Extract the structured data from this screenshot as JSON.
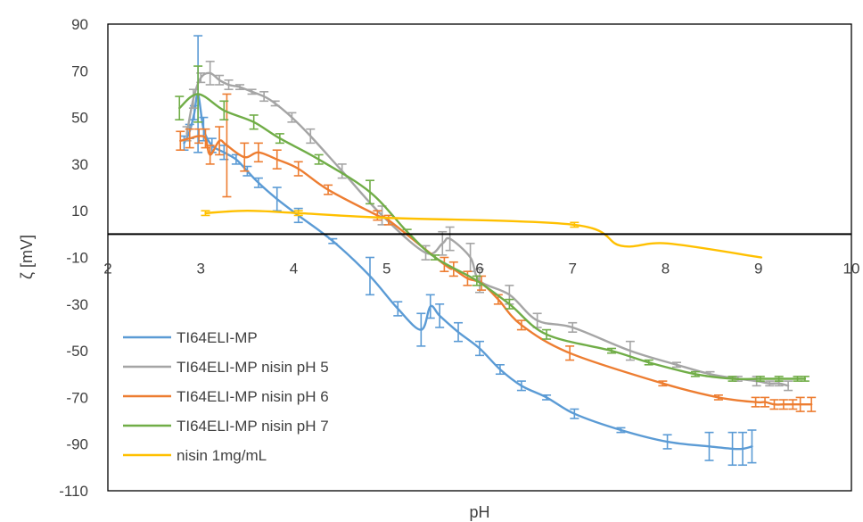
{
  "chart_data": {
    "type": "line",
    "title": "",
    "xlabel": "pH",
    "ylabel": "ζ [mV]",
    "xlim": [
      2,
      10
    ],
    "ylim": [
      -110,
      90
    ],
    "xticks": [
      2,
      3,
      4,
      5,
      6,
      7,
      8,
      9,
      10
    ],
    "yticks": [
      -110,
      -90,
      -70,
      -50,
      -30,
      -10,
      10,
      30,
      50,
      70,
      90
    ],
    "x_tick_labels": [
      "2",
      "3",
      "4",
      "5",
      "6",
      "7",
      "8",
      "9",
      "10"
    ],
    "y_tick_labels": [
      "-110",
      "-90",
      "-70",
      "-50",
      "-30",
      "-10",
      "10",
      "30",
      "50",
      "70",
      "90"
    ],
    "x_axis_crosses_at_y": 0,
    "grid": false,
    "legend_position": "bottom-left",
    "series": [
      {
        "name": "TI64ELI-MP",
        "color": "#5B9BD5",
        "x": [
          2.82,
          2.88,
          2.93,
          2.97,
          3.03,
          3.12,
          3.25,
          3.38,
          3.5,
          3.62,
          3.82,
          4.05,
          4.42,
          4.82,
          5.12,
          5.37,
          5.47,
          5.57,
          5.77,
          6.0,
          6.22,
          6.45,
          6.72,
          7.02,
          7.52,
          8.02,
          8.47,
          8.72,
          8.83,
          8.93
        ],
        "y": [
          39,
          44,
          52,
          60,
          45,
          38,
          35,
          32,
          27,
          22,
          15,
          8,
          -3,
          -18,
          -32,
          -41,
          -31,
          -35,
          -42,
          -49,
          -58,
          -65,
          -70,
          -77,
          -84,
          -89,
          -91,
          -92,
          -92,
          -91
        ],
        "err": [
          3,
          3,
          3,
          25,
          5,
          3,
          3,
          2,
          2,
          2,
          5,
          3,
          1,
          8,
          3,
          7,
          5,
          5,
          4,
          3,
          2,
          2,
          1,
          2,
          1,
          3,
          6,
          7,
          7,
          7
        ]
      },
      {
        "name": "TI64ELI-MP nisin pH 5",
        "color": "#A5A5A5",
        "x": [
          2.85,
          2.92,
          3.0,
          3.1,
          3.2,
          3.3,
          3.42,
          3.55,
          3.68,
          3.8,
          3.98,
          4.18,
          4.52,
          4.95,
          5.42,
          5.6,
          5.68,
          5.9,
          6.0,
          6.32,
          6.62,
          7.0,
          7.62,
          8.12,
          8.48,
          8.78,
          8.98,
          9.12,
          9.22,
          9.32
        ],
        "y": [
          43,
          58,
          67,
          69,
          66,
          64,
          63,
          61,
          59,
          56,
          50,
          42,
          27,
          8,
          -8,
          -4,
          -2,
          -10,
          -20,
          -26,
          -37,
          -40,
          -50,
          -56,
          -60,
          -62,
          -63,
          -64,
          -64,
          -65
        ],
        "err": [
          3,
          4,
          2,
          5,
          2,
          2,
          1,
          1,
          2,
          1,
          2,
          3,
          3,
          4,
          3,
          5,
          5,
          6,
          5,
          4,
          3,
          2,
          4,
          1,
          1,
          1,
          2,
          1,
          1,
          2
        ]
      },
      {
        "name": "TI64ELI-MP nisin pH 6",
        "color": "#ED7D31",
        "x": [
          2.78,
          2.88,
          2.98,
          3.05,
          3.1,
          3.2,
          3.28,
          3.47,
          3.62,
          3.82,
          4.05,
          4.37,
          4.9,
          5.02,
          5.62,
          5.72,
          5.87,
          6.02,
          6.2,
          6.45,
          6.97,
          7.97,
          8.57,
          8.97,
          9.07,
          9.17,
          9.27,
          9.37,
          9.45,
          9.57
        ],
        "y": [
          40,
          41,
          42,
          41,
          34,
          40,
          38,
          33,
          35,
          32,
          28,
          19,
          8,
          6,
          -13,
          -15,
          -19,
          -21,
          -28,
          -39,
          -51,
          -64,
          -70,
          -72,
          -72,
          -73,
          -73,
          -73,
          -73,
          -73
        ],
        "err": [
          4,
          4,
          3,
          4,
          4,
          6,
          22,
          6,
          4,
          4,
          3,
          2,
          2,
          2,
          3,
          3,
          3,
          3,
          2,
          2,
          3,
          1,
          1,
          2,
          2,
          2,
          2,
          2,
          3,
          3
        ]
      },
      {
        "name": "TI64ELI-MP nisin pH 7",
        "color": "#70AD47",
        "x": [
          2.77,
          2.97,
          3.25,
          3.57,
          3.85,
          4.27,
          4.82,
          5.22,
          5.52,
          5.97,
          6.32,
          6.72,
          7.42,
          7.82,
          8.32,
          8.72,
          9.02,
          9.22,
          9.42,
          9.5
        ],
        "y": [
          54,
          60,
          53,
          48,
          41,
          32,
          18,
          1,
          -10,
          -20,
          -30,
          -43,
          -50,
          -55,
          -60,
          -62,
          -62,
          -62,
          -62,
          -62
        ],
        "err": [
          5,
          12,
          4,
          3,
          2,
          2,
          5,
          1,
          1,
          2,
          2,
          2,
          1,
          1,
          1,
          1,
          1,
          1,
          1,
          1
        ]
      },
      {
        "name": "nisin 1mg/mL",
        "color": "#FFC000",
        "x": [
          3.05,
          3.5,
          4.05,
          4.97,
          7.02,
          7.52,
          8.02,
          9.03
        ],
        "y": [
          9,
          10,
          9,
          7,
          4,
          -5,
          -4,
          -10
        ],
        "err": [
          1,
          0,
          1,
          0,
          1,
          0,
          0,
          0
        ]
      }
    ]
  }
}
